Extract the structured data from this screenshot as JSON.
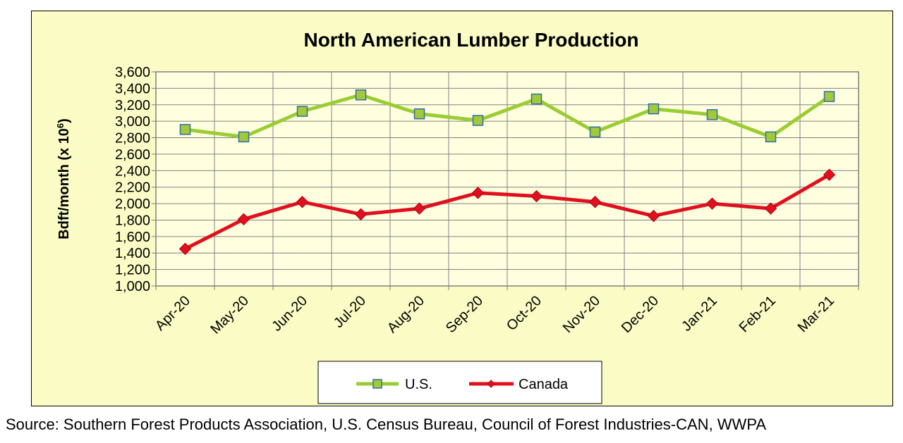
{
  "colors": {
    "background": "#fbfbc5",
    "plot_area": "#ffffe0",
    "us_line": "#9acd32",
    "us_marker": "#a3c93a",
    "us_marker_edge": "#2e6fa7",
    "canada_line": "#e0101e",
    "canada_marker": "#e0101e"
  },
  "source_text": "Source: Southern Forest Products Association, U.S. Census Bureau, Council of Forest Industries-CAN, WWPA",
  "chart_data": {
    "type": "line",
    "title": "North American Lumber Production",
    "xlabel": "",
    "ylabel": "Bdft/month (x 10",
    "ylabel_superscript": "6",
    "ylabel_suffix": ")",
    "ylim": [
      1000,
      3600
    ],
    "yticks": [
      1000,
      1200,
      1400,
      1600,
      1800,
      2000,
      2200,
      2400,
      2600,
      2800,
      3000,
      3200,
      3400,
      3600
    ],
    "ytick_labels": [
      "1,000",
      "1,200",
      "1,400",
      "1,600",
      "1,800",
      "2,000",
      "2,200",
      "2,400",
      "2,600",
      "2,800",
      "3,000",
      "3,200",
      "3,400",
      "3,600"
    ],
    "grid": true,
    "legend_position": "bottom",
    "categories": [
      "Apr-20",
      "May-20",
      "Jun-20",
      "Jul-20",
      "Aug-20",
      "Sep-20",
      "Oct-20",
      "Nov-20",
      "Dec-20",
      "Jan-21",
      "Feb-21",
      "Mar-21"
    ],
    "series": [
      {
        "name": "U.S.",
        "marker": "square",
        "values": [
          2900,
          2810,
          3120,
          3320,
          3090,
          3010,
          3270,
          2870,
          3150,
          3080,
          2810,
          3300
        ]
      },
      {
        "name": "Canada",
        "marker": "diamond",
        "values": [
          1450,
          1810,
          2020,
          1870,
          1940,
          2130,
          2090,
          2020,
          1850,
          2000,
          1940,
          2350
        ]
      }
    ]
  }
}
